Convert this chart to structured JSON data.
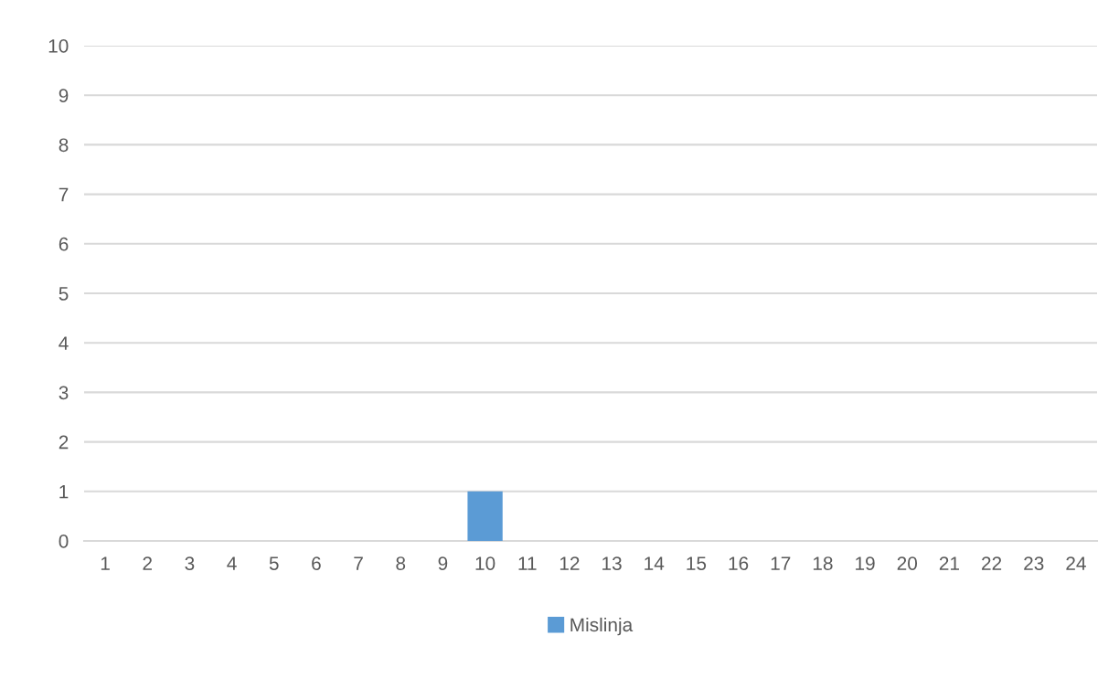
{
  "chart_data": {
    "type": "bar",
    "categories": [
      "1",
      "2",
      "3",
      "4",
      "5",
      "6",
      "7",
      "8",
      "9",
      "10",
      "11",
      "12",
      "13",
      "14",
      "15",
      "16",
      "17",
      "18",
      "19",
      "20",
      "21",
      "22",
      "23",
      "24"
    ],
    "series": [
      {
        "name": "Mislinja",
        "color": "#5b9bd5",
        "values": [
          0,
          0,
          0,
          0,
          0,
          0,
          0,
          0,
          0,
          1,
          0,
          0,
          0,
          0,
          0,
          0,
          0,
          0,
          0,
          0,
          0,
          0,
          0,
          0
        ]
      }
    ],
    "ylim": [
      0,
      10
    ],
    "yticks": [
      0,
      1,
      2,
      3,
      4,
      5,
      6,
      7,
      8,
      9,
      10
    ],
    "grid": "y",
    "legend": "bottom"
  }
}
